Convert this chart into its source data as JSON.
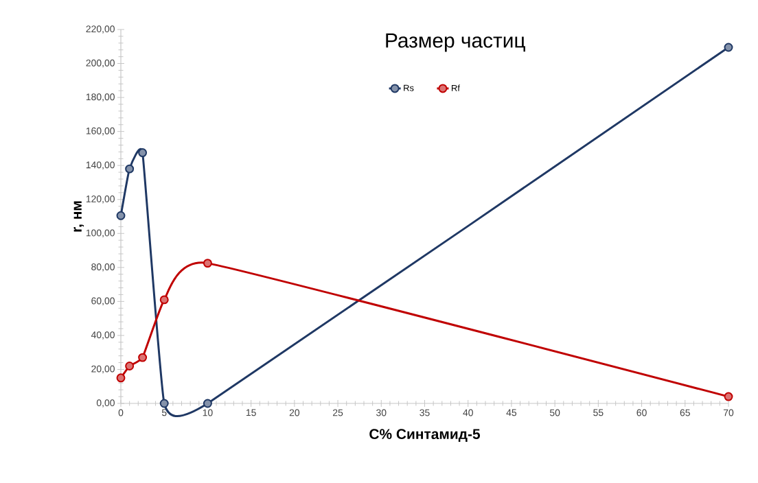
{
  "chart_data": {
    "type": "line",
    "title": "Размер частиц",
    "xlabel": "C% Синтамид-5",
    "ylabel": "r, нм",
    "x": [
      0,
      1,
      2.5,
      5,
      10,
      70
    ],
    "series": [
      {
        "name": "Rs",
        "color": "#1f3864",
        "values": [
          110.5,
          138,
          147.5,
          0,
          0,
          209.5
        ]
      },
      {
        "name": "Rf",
        "color": "#c00000",
        "values": [
          15,
          22,
          27,
          61,
          82.5,
          4
        ]
      }
    ],
    "xlim": [
      0,
      70
    ],
    "xticks": [
      0,
      5,
      10,
      15,
      20,
      25,
      30,
      35,
      40,
      45,
      50,
      55,
      60,
      65,
      70
    ],
    "ylim": [
      0,
      220
    ],
    "yticks": [
      {
        "value": 0,
        "label": "0,00"
      },
      {
        "value": 20,
        "label": "20,00"
      },
      {
        "value": 40,
        "label": "40,00"
      },
      {
        "value": 60,
        "label": "60,00"
      },
      {
        "value": 80,
        "label": "80,00"
      },
      {
        "value": 100,
        "label": "100,00"
      },
      {
        "value": 120,
        "label": "120,00"
      },
      {
        "value": 140,
        "label": "140,00"
      },
      {
        "value": 160,
        "label": "160,00"
      },
      {
        "value": 180,
        "label": "180,00"
      },
      {
        "value": 200,
        "label": "200,00"
      },
      {
        "value": 220,
        "label": "220,00"
      }
    ],
    "grid": false,
    "legend": "top",
    "marker": "circle",
    "line_style": "solid"
  }
}
